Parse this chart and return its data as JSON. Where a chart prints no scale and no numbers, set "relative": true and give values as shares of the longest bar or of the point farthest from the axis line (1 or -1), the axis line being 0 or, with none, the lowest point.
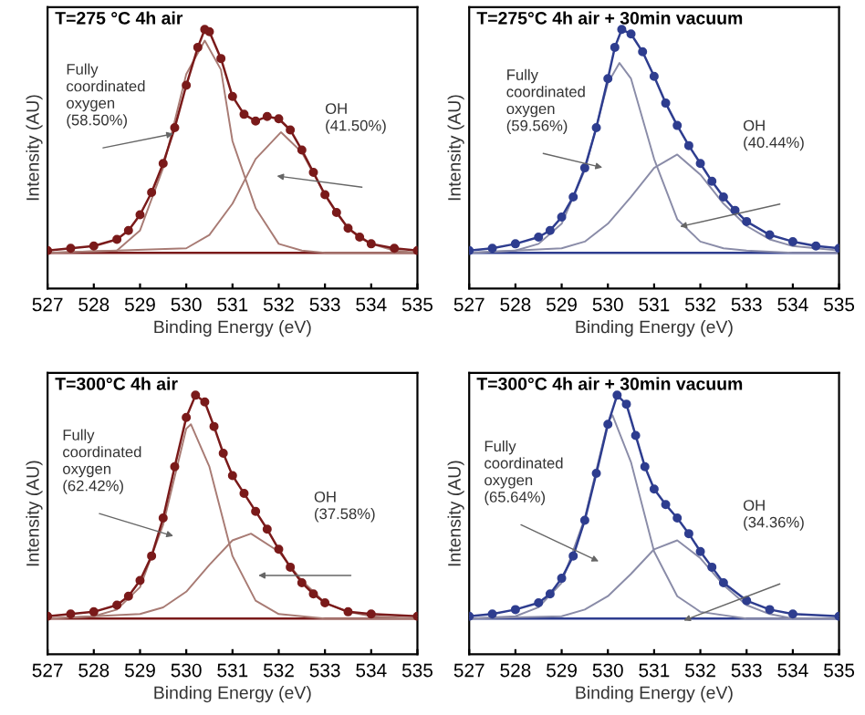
{
  "chart_data": [
    {
      "type": "line",
      "title": "T=275 °C 4h air",
      "xlabel": "Binding Energy (eV)",
      "ylabel": "Intensity (AU)",
      "relative": true,
      "xlim": [
        527,
        535
      ],
      "xticks": [
        527,
        528,
        529,
        530,
        531,
        532,
        533,
        534,
        535
      ],
      "grid": false,
      "ref_lines": [
        {
          "axis": "y",
          "value": 0,
          "color": "#7a1a1a"
        }
      ],
      "annotations": [
        "Fully\ncoordinated\noxygen\n(58.50%)",
        "OH\n(41.50%)"
      ],
      "series": [
        {
          "color": "#7a1a1a",
          "marker": "circle",
          "x": [
            527,
            527.5,
            528,
            528.5,
            528.75,
            529,
            529.25,
            529.5,
            529.75,
            530,
            530.25,
            530.4,
            530.5,
            530.75,
            531,
            531.25,
            531.5,
            531.75,
            532,
            532.25,
            532.5,
            532.75,
            533,
            533.25,
            533.5,
            533.75,
            534,
            534.5,
            535
          ],
          "values": [
            0.01,
            0.02,
            0.03,
            0.06,
            0.1,
            0.17,
            0.27,
            0.4,
            0.56,
            0.75,
            0.92,
            1.0,
            0.99,
            0.87,
            0.7,
            0.62,
            0.59,
            0.61,
            0.6,
            0.55,
            0.46,
            0.36,
            0.26,
            0.18,
            0.11,
            0.07,
            0.04,
            0.02,
            0.01
          ]
        },
        {
          "color": "#a87b74",
          "marker": "none",
          "x": [
            527,
            528.5,
            529,
            529.5,
            530,
            530.4,
            530.75,
            531,
            531.5,
            532,
            532.5,
            533,
            535
          ],
          "values": [
            0,
            0.01,
            0.1,
            0.38,
            0.8,
            0.95,
            0.82,
            0.5,
            0.2,
            0.04,
            0.01,
            0,
            0
          ]
        },
        {
          "color": "#a87b74",
          "marker": "none",
          "x": [
            527,
            530,
            530.5,
            531,
            531.5,
            532.05,
            532.5,
            533,
            533.5,
            534,
            534.5,
            535
          ],
          "values": [
            0,
            0.02,
            0.08,
            0.22,
            0.42,
            0.54,
            0.45,
            0.26,
            0.11,
            0.04,
            0.01,
            0
          ]
        }
      ]
    },
    {
      "type": "line",
      "title": "T=275°C 4h air + 30min vacuum",
      "xlabel": "Binding Energy (eV)",
      "ylabel": "Intensity (AU)",
      "relative": true,
      "xlim": [
        527,
        535
      ],
      "xticks": [
        527,
        528,
        529,
        530,
        531,
        532,
        533,
        534,
        535
      ],
      "grid": false,
      "ref_lines": [
        {
          "axis": "y",
          "value": 0,
          "color": "#2e3d8f"
        }
      ],
      "annotations": [
        "Fully\ncoordinated\noxygen\n(59.56%)",
        "OH\n(40.44%)"
      ],
      "series": [
        {
          "color": "#2e3d8f",
          "marker": "circle",
          "x": [
            527,
            527.5,
            528,
            528.5,
            528.75,
            529,
            529.25,
            529.5,
            529.75,
            530,
            530.15,
            530.3,
            530.5,
            530.75,
            531,
            531.25,
            531.5,
            531.75,
            532,
            532.25,
            532.5,
            532.75,
            533,
            533.5,
            534,
            534.5,
            535
          ],
          "values": [
            0.01,
            0.02,
            0.04,
            0.07,
            0.1,
            0.16,
            0.25,
            0.38,
            0.56,
            0.78,
            0.92,
            1.0,
            0.98,
            0.9,
            0.79,
            0.67,
            0.57,
            0.48,
            0.4,
            0.32,
            0.25,
            0.19,
            0.14,
            0.08,
            0.05,
            0.03,
            0.02
          ]
        },
        {
          "color": "#8a8ca8",
          "marker": "none",
          "x": [
            527,
            528,
            528.5,
            529,
            529.5,
            530,
            530.25,
            530.5,
            531,
            531.5,
            532,
            532.5,
            533,
            534,
            535
          ],
          "values": [
            0,
            0.01,
            0.04,
            0.13,
            0.37,
            0.76,
            0.85,
            0.78,
            0.42,
            0.15,
            0.05,
            0.02,
            0.01,
            0,
            0
          ]
        },
        {
          "color": "#8a8ca8",
          "marker": "none",
          "x": [
            527,
            529,
            529.5,
            530,
            530.5,
            531,
            531.5,
            532,
            532.5,
            533,
            533.5,
            534,
            535
          ],
          "values": [
            0,
            0.02,
            0.05,
            0.13,
            0.25,
            0.38,
            0.44,
            0.35,
            0.22,
            0.12,
            0.06,
            0.03,
            0.01
          ]
        }
      ]
    },
    {
      "type": "line",
      "title": "T=300°C 4h air",
      "xlabel": "Binding Energy (eV)",
      "ylabel": "Intensity (AU)",
      "relative": true,
      "xlim": [
        527,
        535
      ],
      "xticks": [
        527,
        528,
        529,
        530,
        531,
        532,
        533,
        534,
        535
      ],
      "grid": false,
      "ref_lines": [
        {
          "axis": "y",
          "value": 0,
          "color": "#7a1a1a"
        }
      ],
      "annotations": [
        "Fully\ncoordinated\noxygen\n(62.42%)",
        "OH\n(37.58%)"
      ],
      "series": [
        {
          "color": "#7a1a1a",
          "marker": "circle",
          "x": [
            527,
            527.5,
            528,
            528.5,
            528.75,
            529,
            529.25,
            529.5,
            529.75,
            530,
            530.2,
            530.4,
            530.6,
            530.8,
            531,
            531.25,
            531.5,
            531.75,
            532,
            532.25,
            532.5,
            532.75,
            533,
            533.5,
            534,
            535
          ],
          "values": [
            0.01,
            0.02,
            0.03,
            0.06,
            0.1,
            0.17,
            0.28,
            0.45,
            0.68,
            0.9,
            1.0,
            0.97,
            0.86,
            0.74,
            0.64,
            0.56,
            0.48,
            0.4,
            0.31,
            0.23,
            0.16,
            0.11,
            0.07,
            0.03,
            0.02,
            0.01
          ]
        },
        {
          "color": "#a87b74",
          "marker": "none",
          "x": [
            527,
            528,
            528.5,
            529,
            529.5,
            530,
            530.1,
            530.5,
            531,
            531.5,
            532,
            533,
            535
          ],
          "values": [
            0,
            0.01,
            0.04,
            0.14,
            0.42,
            0.85,
            0.87,
            0.68,
            0.28,
            0.08,
            0.02,
            0,
            0
          ]
        },
        {
          "color": "#a87b74",
          "marker": "none",
          "x": [
            527,
            529,
            529.5,
            530,
            530.5,
            531,
            531.4,
            532,
            532.5,
            533,
            533.5,
            534,
            535
          ],
          "values": [
            0,
            0.02,
            0.05,
            0.12,
            0.24,
            0.35,
            0.38,
            0.3,
            0.17,
            0.07,
            0.03,
            0.01,
            0
          ]
        }
      ]
    },
    {
      "type": "line",
      "title": "T=300°C 4h air + 30min vacuum",
      "xlabel": "Binding Energy (eV)",
      "ylabel": "Intensity (AU)",
      "relative": true,
      "xlim": [
        527,
        535
      ],
      "xticks": [
        527,
        528,
        529,
        530,
        531,
        532,
        533,
        534,
        535
      ],
      "grid": false,
      "ref_lines": [
        {
          "axis": "y",
          "value": 0,
          "color": "#2e3d8f"
        }
      ],
      "annotations": [
        "Fully\ncoordinated\noxygen\n(65.64%)",
        "OH\n(34.36%)"
      ],
      "series": [
        {
          "color": "#2e3d8f",
          "marker": "circle",
          "x": [
            527,
            527.5,
            528,
            528.5,
            528.75,
            529,
            529.25,
            529.5,
            529.75,
            530,
            530.2,
            530.4,
            530.6,
            530.8,
            531,
            531.25,
            531.5,
            531.75,
            532,
            532.25,
            532.5,
            533,
            533.5,
            534,
            535
          ],
          "values": [
            0.01,
            0.02,
            0.04,
            0.07,
            0.11,
            0.18,
            0.28,
            0.44,
            0.65,
            0.87,
            1.0,
            0.96,
            0.82,
            0.68,
            0.58,
            0.51,
            0.45,
            0.38,
            0.3,
            0.23,
            0.16,
            0.08,
            0.04,
            0.02,
            0.01
          ]
        },
        {
          "color": "#8a8ca8",
          "marker": "none",
          "x": [
            527,
            528,
            528.5,
            529,
            529.5,
            530,
            530.1,
            530.5,
            531,
            531.5,
            532,
            533,
            535
          ],
          "values": [
            0,
            0.01,
            0.05,
            0.16,
            0.45,
            0.88,
            0.91,
            0.7,
            0.3,
            0.1,
            0.03,
            0,
            0
          ]
        },
        {
          "color": "#8a8ca8",
          "marker": "none",
          "x": [
            527,
            529,
            529.5,
            530,
            530.5,
            531,
            531.5,
            532,
            532.5,
            533,
            533.5,
            534,
            535
          ],
          "values": [
            0,
            0.01,
            0.04,
            0.1,
            0.2,
            0.31,
            0.35,
            0.27,
            0.15,
            0.06,
            0.02,
            0,
            0
          ]
        }
      ]
    }
  ]
}
